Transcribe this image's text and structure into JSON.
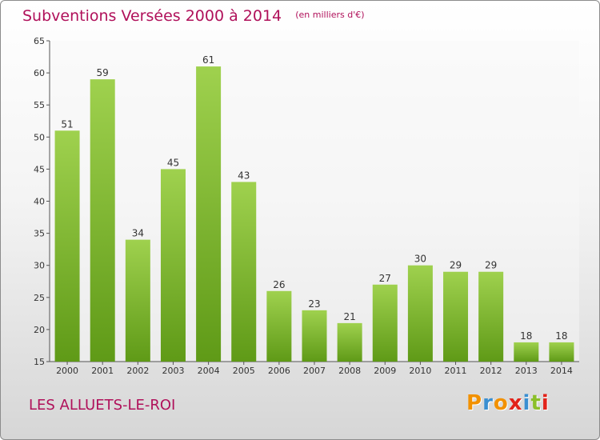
{
  "title": "Subventions Versées 2000 à 2014",
  "subtitle": "(en milliers d'€)",
  "location": "LES ALLUETS-LE-ROI",
  "logo_text": "Proxiti",
  "colors": {
    "title": "#b0105a",
    "bar_top": "#9fd14e",
    "bar_bottom": "#5f9a17",
    "logo_letters": [
      "#f29100",
      "#3a8fd1",
      "#f29100",
      "#e2231a",
      "#3a8fd1",
      "#8bbf2a",
      "#e2231a"
    ]
  },
  "chart_data": {
    "type": "bar",
    "title": "Subventions Versées 2000 à 2014",
    "unit_label": "(en milliers d'€)",
    "categories": [
      "2000",
      "2001",
      "2002",
      "2003",
      "2004",
      "2005",
      "2006",
      "2007",
      "2008",
      "2009",
      "2010",
      "2011",
      "2012",
      "2013",
      "2014"
    ],
    "values": [
      51,
      59,
      34,
      45,
      61,
      43,
      26,
      23,
      21,
      27,
      30,
      29,
      29,
      18,
      18
    ],
    "ylim": [
      15,
      65
    ],
    "yticks": [
      15,
      20,
      25,
      30,
      35,
      40,
      45,
      50,
      55,
      60,
      65
    ],
    "grid": false,
    "xlabel": "",
    "ylabel": ""
  }
}
